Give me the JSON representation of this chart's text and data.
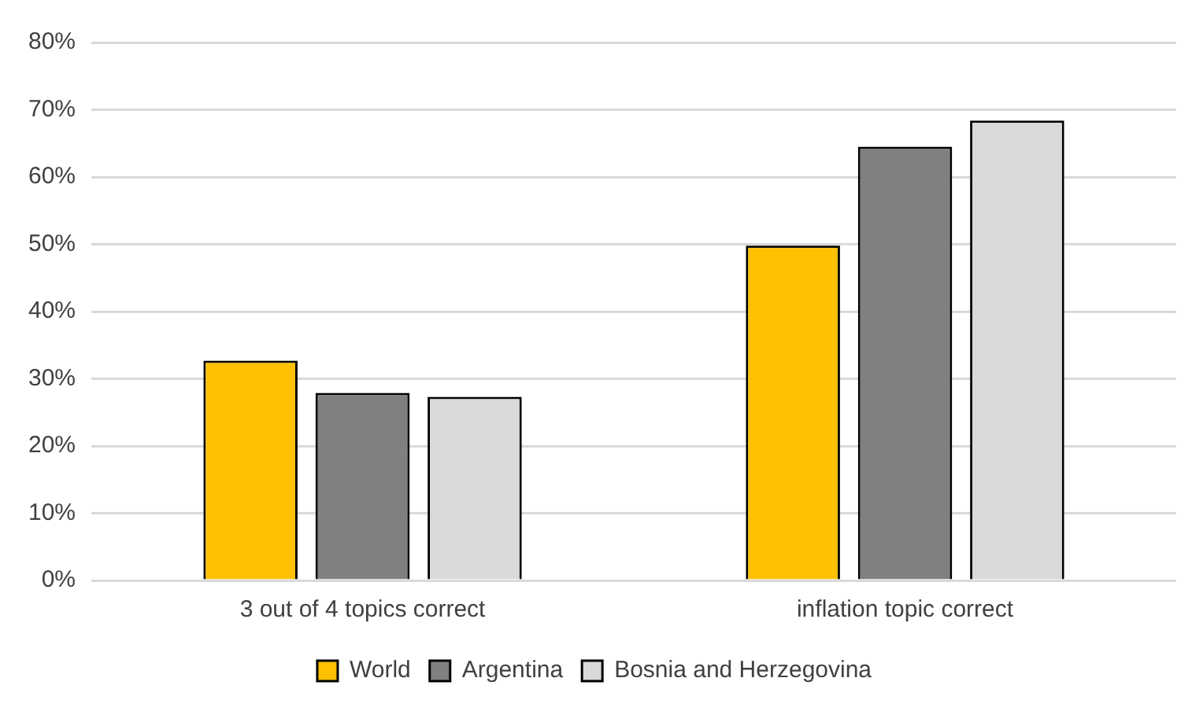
{
  "chart_data": {
    "type": "bar",
    "categories": [
      "3 out of 4 topics correct",
      "inflation topic correct"
    ],
    "series": [
      {
        "name": "World",
        "color": "#ffc000",
        "values": [
          32.7,
          49.8
        ]
      },
      {
        "name": "Argentina",
        "color": "#808080",
        "values": [
          27.9,
          64.5
        ]
      },
      {
        "name": "Bosnia and Herzegovina",
        "color": "#d9d9d9",
        "values": [
          27.3,
          68.4
        ]
      }
    ],
    "ylim": [
      0,
      80
    ],
    "yticks": [
      {
        "value": 0,
        "label": "0%"
      },
      {
        "value": 10,
        "label": "10%"
      },
      {
        "value": 20,
        "label": "20%"
      },
      {
        "value": 30,
        "label": "30%"
      },
      {
        "value": 40,
        "label": "40%"
      },
      {
        "value": 50,
        "label": "50%"
      },
      {
        "value": 60,
        "label": "60%"
      },
      {
        "value": 70,
        "label": "70%"
      },
      {
        "value": 80,
        "label": "80%"
      }
    ],
    "grid": "y",
    "legend": "bottom"
  }
}
